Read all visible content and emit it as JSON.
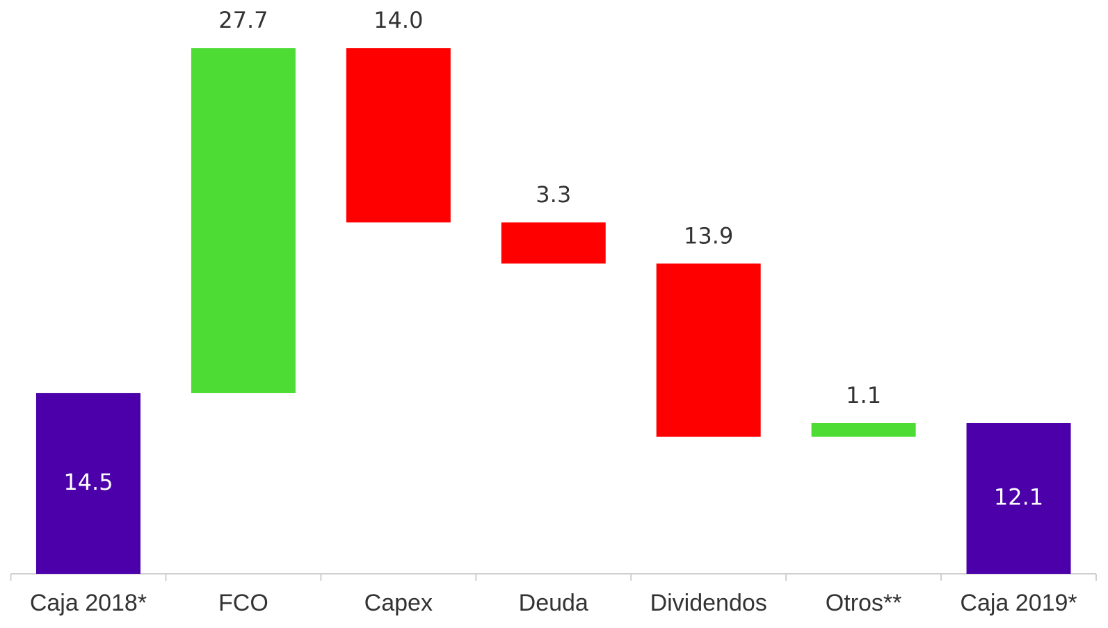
{
  "chart_data": {
    "type": "waterfall",
    "categories": [
      "Caja 2018*",
      "FCO",
      "Capex",
      "Deuda",
      "Dividendos",
      "Otros**",
      "Caja 2019*"
    ],
    "values": [
      14.5,
      27.7,
      -14.0,
      -3.3,
      -13.9,
      1.1,
      12.1
    ],
    "value_labels": [
      "14.5",
      "27.7",
      "14.0",
      "3.3",
      "13.9",
      "1.1",
      "12.1"
    ],
    "colors": [
      "#4b00aa",
      "#4cdc34",
      "#ff0000",
      "#ff0000",
      "#ff0000",
      "#4cdc34",
      "#4b00aa"
    ],
    "ylim": [
      0,
      46
    ]
  }
}
